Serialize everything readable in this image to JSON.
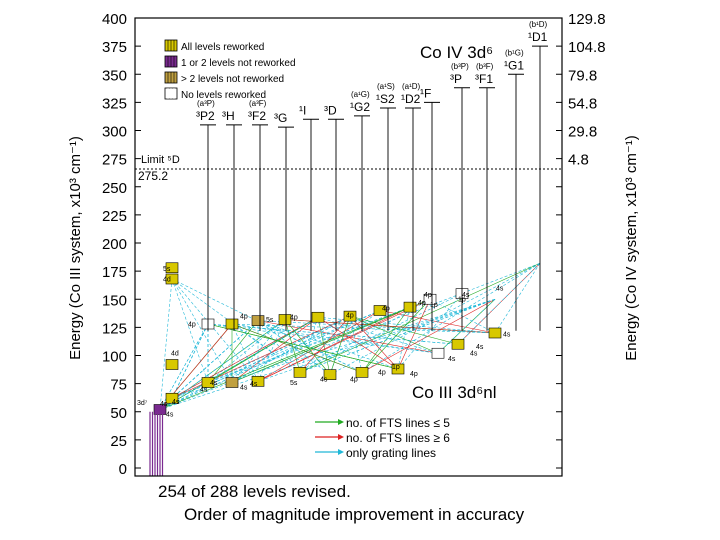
{
  "figure": {
    "left_axis_title": "Energy (Co III system, x10³ cm⁻¹)",
    "right_axis_title": "Energy (Co IV system, x10³ cm⁻¹)",
    "left_ticks": [
      "400",
      "375",
      "350",
      "325",
      "300",
      "275",
      "250",
      "225",
      "200",
      "175",
      "150",
      "125",
      "100",
      "75",
      "50",
      "25",
      "0"
    ],
    "right_ticks": [
      "129.8",
      "104.8",
      "79.8",
      "54.8",
      "29.8",
      "4.8"
    ],
    "right_ticks_co3_values": [
      400,
      375,
      350,
      325,
      300,
      275
    ],
    "limit_label_1": "Limit ⁵D",
    "limit_label_2": "275.2",
    "co4_title": "Co IV 3d⁶",
    "co3_title": "Co III 3d⁶nl",
    "legend_levels": [
      {
        "label": "All  levels reworked",
        "color": "#d8c800"
      },
      {
        "label": "1 or 2 levels not reworked",
        "color": "#7a2a90"
      },
      {
        "label": "> 2 levels not reworked",
        "color": "#c0a040"
      },
      {
        "label": "No levels reworked",
        "color": "#000000"
      }
    ],
    "legend_lines": [
      {
        "label": "no. of FTS  lines ≤ 5",
        "color": "#22aa22"
      },
      {
        "label": "no. of FTS  lines ≥ 6",
        "color": "#dd2222"
      },
      {
        "label": "only grating lines",
        "color": "#20b8d8"
      }
    ],
    "co4_terms": [
      {
        "paren": "(a³P)",
        "term": "³P2",
        "co3": 305
      },
      {
        "paren": "",
        "term": "³H",
        "co3": 305
      },
      {
        "paren": "(a³F)",
        "term": "³F2",
        "co3": 305
      },
      {
        "paren": "",
        "term": "³G",
        "co3": 303
      },
      {
        "paren": "",
        "term": "¹I",
        "co3": 310
      },
      {
        "paren": "",
        "term": "³D",
        "co3": 310
      },
      {
        "paren": "(a¹G)",
        "term": "¹G2",
        "co3": 313
      },
      {
        "paren": "(a¹S)",
        "term": "¹S2",
        "co3": 320
      },
      {
        "paren": "(a¹D)",
        "term": "¹D2",
        "co3": 320
      },
      {
        "paren": "",
        "term": "¹F",
        "co3": 325
      },
      {
        "paren": "(b³P)",
        "term": "³P",
        "co3": 338
      },
      {
        "paren": "(b³F)",
        "term": "³F1",
        "co3": 338
      },
      {
        "paren": "(b¹G)",
        "term": "¹G1",
        "co3": 350
      },
      {
        "paren": "(b¹D)",
        "term": "¹D1",
        "co3": 375
      }
    ],
    "level_labels": [
      "5s",
      "4d",
      "4p",
      "4p",
      "5s",
      "4p",
      "4p",
      "4p",
      "4p",
      "4p",
      "4s",
      "4s",
      "4d",
      "4s",
      "4s",
      "5s",
      "4s",
      "4p",
      "4p",
      "4p",
      "4s",
      "4s",
      "4s",
      "4s",
      "4s",
      "4s",
      "4s",
      "1p",
      "1p",
      "1p",
      "4s",
      "3d⁷",
      "4s"
    ]
  },
  "caption": {
    "line1": "254 of 288 levels revised.",
    "line2": "Order of magnitude improvement in accuracy"
  }
}
